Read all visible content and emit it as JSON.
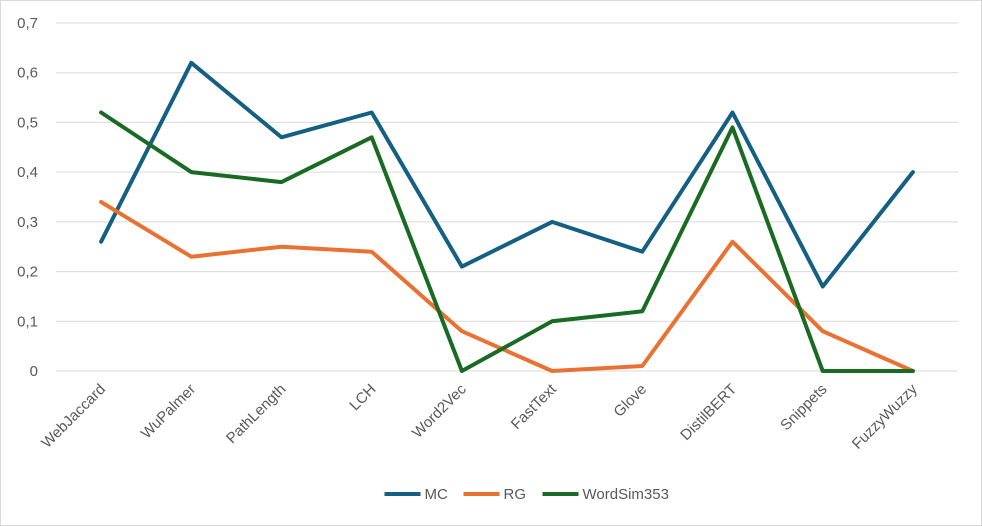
{
  "chart_data": {
    "type": "line",
    "categories": [
      "WebJaccard",
      "WuPalmer",
      "PathLength",
      "LCH",
      "Word2Vec",
      "FastText",
      "Glove",
      "DistilBERT",
      "Snippets",
      "FuzzyWuzzy"
    ],
    "series": [
      {
        "name": "MC",
        "color": "#156082",
        "values": [
          0.26,
          0.62,
          0.47,
          0.52,
          0.21,
          0.3,
          0.24,
          0.52,
          0.17,
          0.4
        ]
      },
      {
        "name": "RG",
        "color": "#e97132",
        "values": [
          0.34,
          0.23,
          0.25,
          0.24,
          0.08,
          0.0,
          0.01,
          0.26,
          0.08,
          0.0
        ]
      },
      {
        "name": "WordSim353",
        "color": "#196b24",
        "values": [
          0.52,
          0.4,
          0.38,
          0.47,
          0.0,
          0.1,
          0.12,
          0.49,
          0.0,
          0.0
        ]
      }
    ],
    "y_ticks": [
      "0",
      "0,1",
      "0,2",
      "0,3",
      "0,4",
      "0,5",
      "0,6",
      "0,7"
    ],
    "ylim": [
      0,
      0.7
    ],
    "grid": true,
    "legend_position": "bottom"
  }
}
